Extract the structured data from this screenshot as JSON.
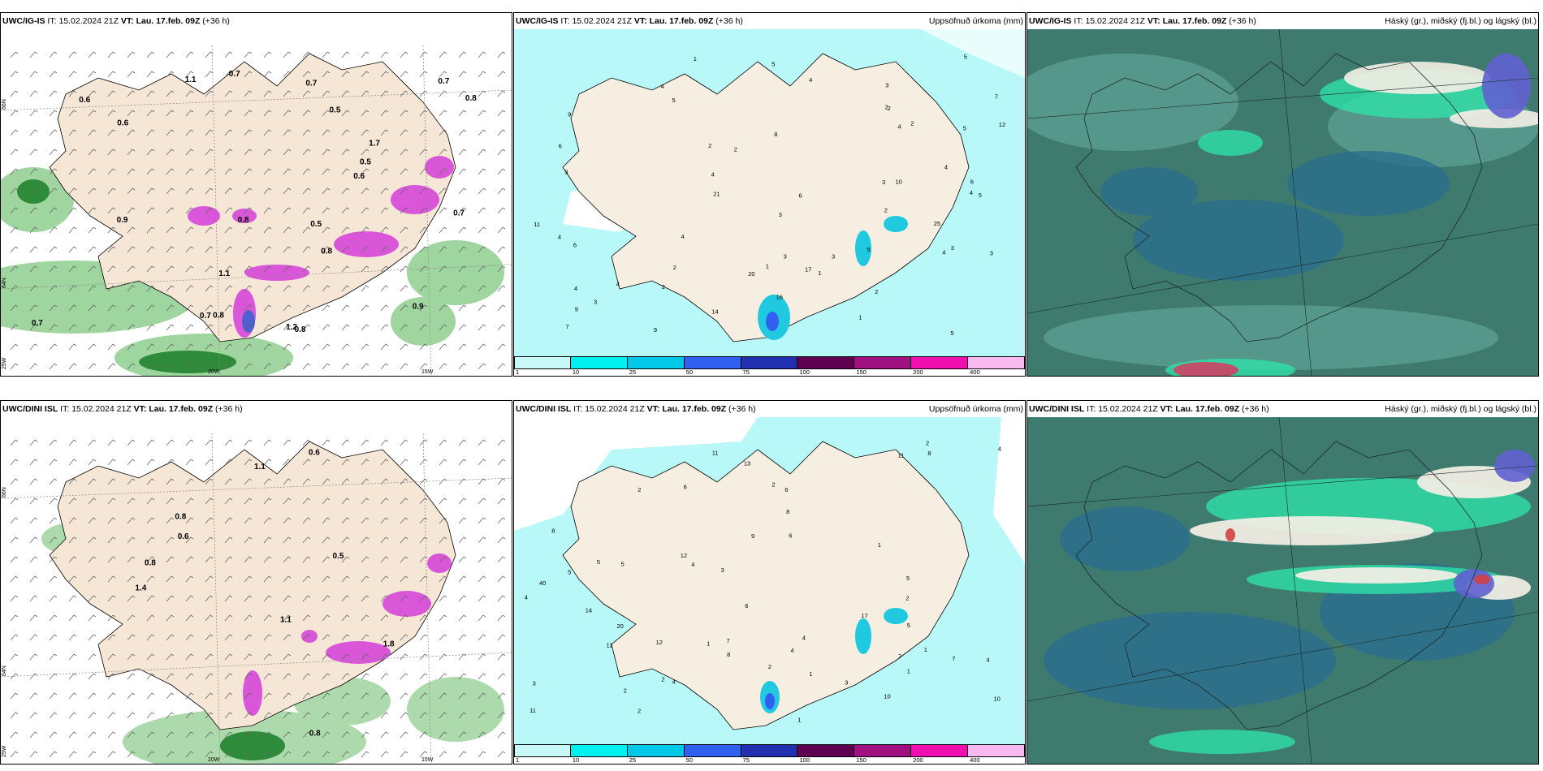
{
  "top_row": {
    "panel_wind": {
      "model": "UWC/IG-IS",
      "it_label": "IT:",
      "it": "15.02.2024 21Z",
      "vt_label": "VT:",
      "vt": "Lau. 17.feb. 09Z",
      "lead": "(+36 h)",
      "title": ""
    },
    "panel_precip": {
      "model": "UWC/IG-IS",
      "it_label": "IT:",
      "it": "15.02.2024 21Z",
      "vt_label": "VT:",
      "vt": "Lau. 17.feb. 09Z",
      "lead": "(+36 h)",
      "title": "Uppsöfnuð úrkoma (mm)"
    },
    "panel_cloud": {
      "model": "UWC/IG-IS",
      "it_label": "IT:",
      "it": "15.02.2024 21Z",
      "vt_label": "VT:",
      "vt": "Lau. 17.feb. 09Z",
      "lead": "(+36 h)",
      "title": "Háský (gr.), miðský (fj.bl.) og lágský (bl.)"
    }
  },
  "bottom_row": {
    "panel_wind": {
      "model": "UWC/DINI ISL",
      "it_label": "IT:",
      "it": "15.02.2024 21Z",
      "vt_label": "VT:",
      "vt": "Lau. 17.feb. 09Z",
      "lead": "(+36 h)",
      "title": ""
    },
    "panel_precip": {
      "model": "UWC/DINI ISL",
      "it_label": "IT:",
      "it": "15.02.2024 21Z",
      "vt_label": "VT:",
      "vt": "Lau. 17.feb. 09Z",
      "lead": "(+36 h)",
      "title": "Uppsöfnuð úrkoma (mm)"
    },
    "panel_cloud": {
      "model": "UWC/DINI ISL",
      "it_label": "IT:",
      "it": "15.02.2024 21Z",
      "vt_label": "VT:",
      "vt": "Lau. 17.feb. 09Z",
      "lead": "(+36 h)",
      "title": "Háský (gr.), miðský (fj.bl.) og lágský (bl.)"
    }
  },
  "grid_labels": {
    "lat_66": "66N",
    "lat_64": "64N",
    "lon_25": "25W",
    "lon_20": "20W",
    "lon_15": "15W"
  },
  "colorbar": {
    "ticks": [
      "1",
      "10",
      "25",
      "50",
      "75",
      "100",
      "150",
      "200",
      "400"
    ],
    "colors": [
      "#c8f8f8",
      "#00f0f0",
      "#00c8e8",
      "#3060f0",
      "#2030b0",
      "#600050",
      "#a01080",
      "#f010b0",
      "#f8b8f0"
    ]
  },
  "wind_top_values": [
    "0.6",
    "0.8",
    "0.7",
    "0.8",
    "0.6",
    "0.5",
    "0.8",
    "1.1",
    "0.5",
    "0.5",
    "0.9",
    "0.8",
    "0.6",
    "0.7",
    "0.9",
    "1.2",
    "0.7",
    "1.7",
    "0.7",
    "0.7",
    "0.8",
    "0.7",
    "1.1"
  ],
  "wind_bottom_values": [
    "1.1",
    "1.1",
    "0.6",
    "0.8",
    "0.6",
    "0.8",
    "1.4",
    "0.5",
    "0.8",
    "1.8"
  ],
  "precip_top_values": [
    "4",
    "2",
    "5",
    "3",
    "3",
    "2",
    "3",
    "2",
    "1",
    "5",
    "3",
    "3",
    "2",
    "4",
    "2",
    "11",
    "6",
    "9",
    "2",
    "3",
    "4",
    "6",
    "16",
    "1",
    "4",
    "4",
    "4",
    "5",
    "20",
    "17",
    "21",
    "9",
    "14",
    "3",
    "4",
    "25",
    "12",
    "2",
    "5",
    "10",
    "6",
    "7",
    "4",
    "5",
    "8",
    "7",
    "4",
    "5",
    "6",
    "3",
    "1",
    "4",
    "2",
    "9",
    "5",
    "3",
    "1",
    "4",
    "2"
  ],
  "precip_bottom_values": [
    "2",
    "1",
    "1",
    "2",
    "40",
    "1",
    "4",
    "2",
    "8",
    "7",
    "6",
    "2",
    "1",
    "2",
    "1",
    "1",
    "5",
    "2",
    "4",
    "3",
    "5",
    "4",
    "13",
    "11",
    "8",
    "12",
    "10",
    "8",
    "20",
    "17",
    "11",
    "8",
    "5",
    "6",
    "3",
    "4",
    "5",
    "7",
    "11",
    "14",
    "6",
    "4",
    "7",
    "10",
    "12",
    "5",
    "2",
    "4",
    "11",
    "9",
    "6",
    "3",
    "2",
    "4"
  ],
  "colors": {
    "land": "#f8ede0",
    "sea": "#ffffff",
    "precip_light": "#b8f8f8",
    "wind_green": "#4caf50",
    "magenta": "#e040e0",
    "cloud_bg": "#3f7a6e"
  }
}
